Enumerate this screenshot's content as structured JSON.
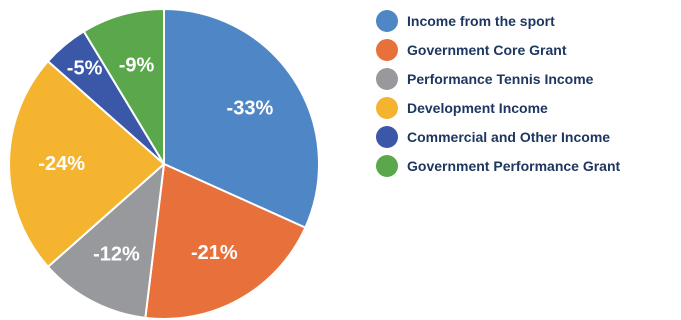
{
  "chart_data": {
    "type": "pie",
    "categories": [
      "Income from the sport",
      "Government Core Grant",
      "Performance Tennis Income",
      "Development Income",
      "Commercial and Other Income",
      "Government Performance Grant"
    ],
    "values": [
      33,
      21,
      12,
      24,
      5,
      9
    ],
    "labels": [
      "-33%",
      "-21%",
      "-12%",
      "-24%",
      "-5%",
      "-9%"
    ],
    "colors": [
      "#4f86c6",
      "#e8703a",
      "#97999c",
      "#f5b430",
      "#3a57a8",
      "#5aa84b"
    ],
    "start": "12 o'clock",
    "direction": "clockwise",
    "legend_position": "right"
  }
}
